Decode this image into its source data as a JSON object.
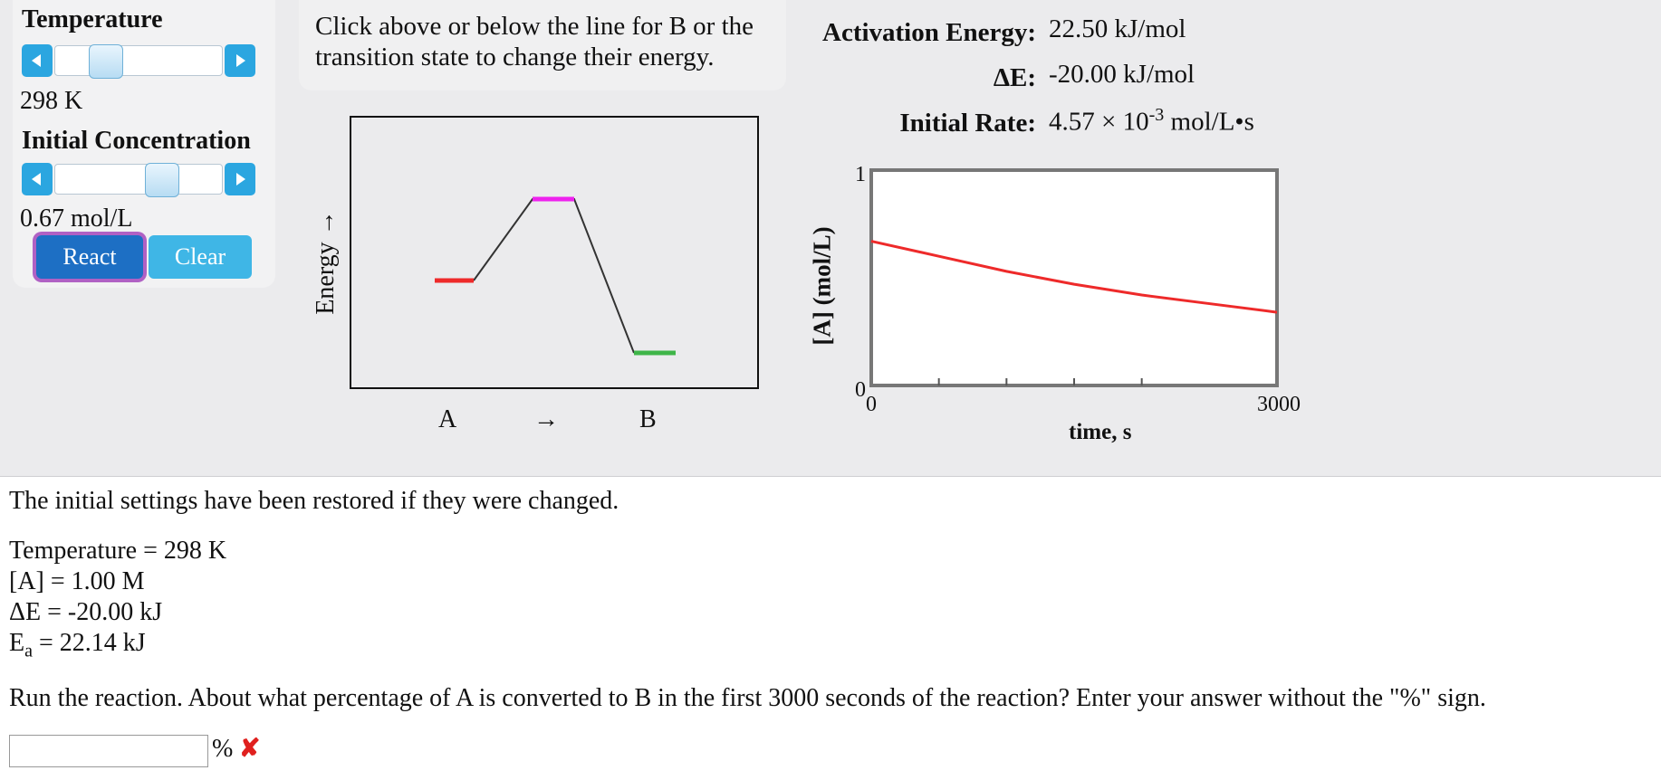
{
  "controls": {
    "temperature_label": "Temperature",
    "temperature_value": "298 K",
    "temperature_slider_fraction": 0.25,
    "concentration_label": "Initial Concentration",
    "concentration_value": "0.67 mol/L",
    "concentration_slider_fraction": 0.67,
    "react_label": "React",
    "clear_label": "Clear"
  },
  "instructions": "Click above or below the line for B or the transition state to change their energy.",
  "energy_diagram": {
    "y_label": "Energy →",
    "label_a": "A",
    "arrow": "→",
    "label_b": "B",
    "colors": {
      "reactant": "#ee2a2a",
      "transition": "#ee22ee",
      "product": "#3fb549"
    }
  },
  "readouts": {
    "activation_label": "Activation Energy:",
    "activation_value": "22.50 kJ/mol",
    "delta_e_label": "ΔE:",
    "delta_e_value": "-20.00 kJ/mol",
    "rate_label": "Initial Rate:",
    "rate_value_base": "4.57 × 10",
    "rate_value_exp": "-3",
    "rate_value_unit": " mol/L•s"
  },
  "chart_data": {
    "type": "line",
    "title": "",
    "xlabel": "time, s",
    "ylabel": "[A] (mol/L)",
    "xlim": [
      0,
      3000
    ],
    "ylim": [
      0,
      1
    ],
    "x_tick_labels": [
      "0",
      "3000"
    ],
    "y_tick_labels": [
      "0",
      "1"
    ],
    "series": [
      {
        "name": "[A]",
        "color": "#ee2a2a",
        "x": [
          0,
          500,
          1000,
          1500,
          2000,
          2500,
          3000
        ],
        "y": [
          0.67,
          0.6,
          0.53,
          0.47,
          0.42,
          0.38,
          0.34
        ]
      }
    ]
  },
  "feedback": {
    "restored": "The initial settings have been restored if they were changed.",
    "temp_line": "Temperature = 298 K",
    "conc_line": "[A] = 1.00 M",
    "de_line": "ΔE = -20.00 kJ",
    "ea_prefix": "E",
    "ea_sub": "a",
    "ea_suffix": " = 22.14 kJ",
    "question": "Run the reaction. About what percentage of A is converted to B in the first 3000 seconds of the reaction? Enter your answer without the \"%\" sign.",
    "percent_sign": "%",
    "answer_value": "",
    "status_icon": "✘"
  }
}
